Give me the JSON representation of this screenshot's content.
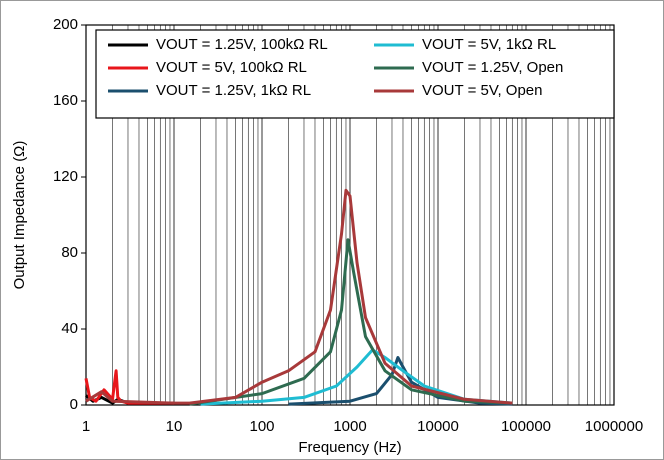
{
  "chart_data": {
    "type": "line",
    "xlabel": "Frequency (Hz)",
    "ylabel": "Output Impedance (Ω)",
    "xscale": "log",
    "xlim": [
      1,
      1000000
    ],
    "xticks": [
      1,
      10,
      100,
      1000,
      10000,
      100000,
      1000000
    ],
    "ylim": [
      0,
      200
    ],
    "yticks": [
      0,
      40,
      80,
      120,
      160,
      200
    ],
    "grid": "x",
    "series": [
      {
        "name": "VOUT = 1.25V, 100kΩ RL",
        "color": "#000000",
        "x": [
          1,
          1.2,
          1.5,
          2,
          2.3,
          3,
          5,
          10
        ],
        "values": [
          5,
          2,
          4,
          1,
          3,
          1,
          1,
          1
        ]
      },
      {
        "name": "VOUT = 5V, 100kΩ RL",
        "color": "#e8161b",
        "x": [
          1,
          1.1,
          1.3,
          1.6,
          2,
          2.2,
          2.3,
          2.5,
          3,
          5,
          10
        ],
        "values": [
          14,
          4,
          2,
          8,
          3,
          18,
          4,
          2,
          1,
          1,
          1
        ]
      },
      {
        "name": "VOUT = 1.25V, 1kΩ RL",
        "color": "#1b4f6e",
        "x": [
          200,
          1000,
          2000,
          3000,
          3500,
          4000,
          5000,
          10000,
          30000,
          70000
        ],
        "values": [
          0.5,
          2,
          6,
          16,
          25,
          20,
          12,
          4,
          1,
          0.5
        ]
      },
      {
        "name": "VOUT = 5V, 1kΩ RL",
        "color": "#1fbcd2",
        "x": [
          20,
          100,
          300,
          700,
          1200,
          1800,
          2500,
          4000,
          7000,
          20000,
          70000
        ],
        "values": [
          0.5,
          2,
          4,
          10,
          20,
          29,
          25,
          18,
          10,
          3,
          1
        ]
      },
      {
        "name": "VOUT = 1.25V, Open",
        "color": "#2e6b50",
        "x": [
          15,
          100,
          300,
          600,
          800,
          950,
          1100,
          1500,
          2500,
          5000,
          20000,
          70000
        ],
        "values": [
          0.5,
          6,
          14,
          28,
          50,
          87,
          70,
          36,
          18,
          8,
          2,
          1
        ]
      },
      {
        "name": "VOUT = 5V, Open",
        "color": "#a8393a",
        "x": [
          1,
          1.5,
          2,
          10,
          15,
          50,
          100,
          200,
          400,
          600,
          800,
          900,
          1000,
          1200,
          1500,
          2500,
          5000,
          20000,
          70000
        ],
        "values": [
          2,
          7,
          2,
          1,
          1,
          4,
          12,
          18,
          28,
          50,
          90,
          113,
          110,
          75,
          46,
          22,
          10,
          3,
          1
        ]
      }
    ]
  }
}
